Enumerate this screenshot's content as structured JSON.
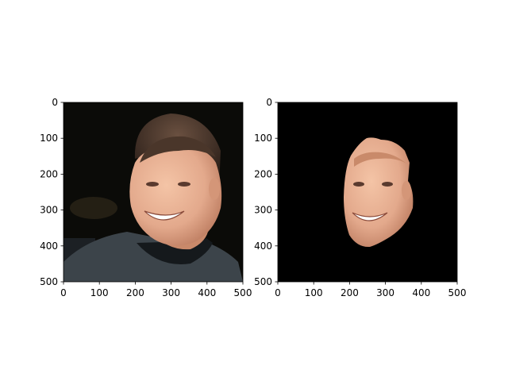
{
  "chart_data": [
    {
      "type": "image",
      "subject": "face-photo",
      "content": "photograph of a smiling man with short dark hair in a dark t-shirt against a dark background",
      "xlim": [
        0,
        500
      ],
      "ylim": [
        500,
        0
      ],
      "x_ticks": [
        "0",
        "100",
        "200",
        "300",
        "400",
        "500"
      ],
      "y_ticks": [
        "0",
        "100",
        "200",
        "300",
        "400",
        "500"
      ],
      "colors": {
        "background": "#0b0b08",
        "shirt": "#3c444a",
        "skin": "#e3a98c",
        "hair": "#3a2a20"
      }
    },
    {
      "type": "image",
      "subject": "face-mask",
      "content": "same photo with everything except the face masked to black",
      "xlim": [
        0,
        500
      ],
      "ylim": [
        500,
        0
      ],
      "x_ticks": [
        "0",
        "100",
        "200",
        "300",
        "400",
        "500"
      ],
      "y_ticks": [
        "0",
        "100",
        "200",
        "300",
        "400",
        "500"
      ],
      "colors": {
        "background": "#000000",
        "skin": "#e3a98c"
      }
    }
  ]
}
